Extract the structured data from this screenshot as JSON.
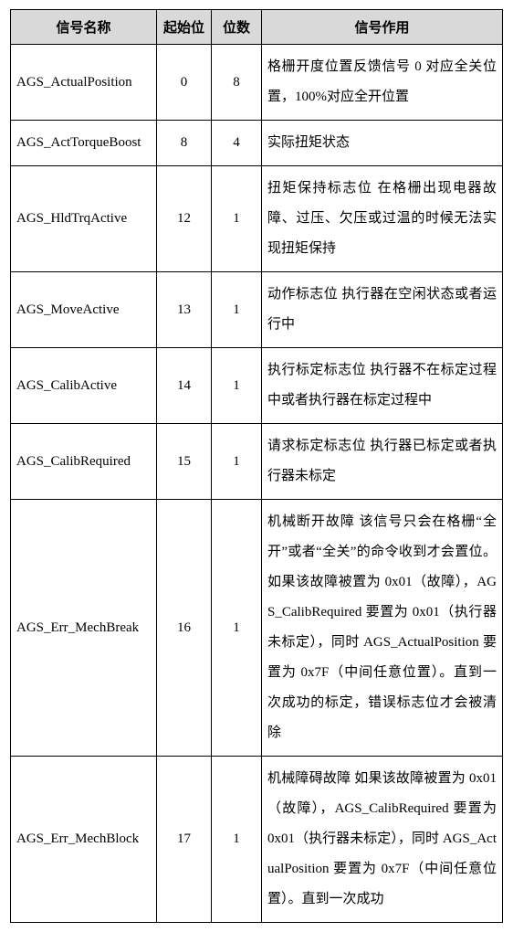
{
  "table": {
    "headers": [
      "信号名称",
      "起始位",
      "位数",
      "信号作用"
    ],
    "rows": [
      {
        "name": "AGS_ActualPosition",
        "start": "0",
        "bits": "8",
        "desc": "格栅开度位置反馈信号\n0 对应全关位置，100%对应全开位置"
      },
      {
        "name": "AGS_ActTorqueBoost",
        "start": "8",
        "bits": "4",
        "desc": "实际扭矩状态"
      },
      {
        "name": "AGS_HldTrqActive",
        "start": "12",
        "bits": "1",
        "desc": "扭矩保持标志位\n在格栅出现电器故障、过压、欠压或过温的时候无法实现扭矩保持"
      },
      {
        "name": "AGS_MoveActive",
        "start": "13",
        "bits": "1",
        "desc": "动作标志位\n执行器在空闲状态或者运行中"
      },
      {
        "name": "AGS_CalibActive",
        "start": "14",
        "bits": "1",
        "desc": "执行标定标志位\n执行器不在标定过程中或者执行器在标定过程中"
      },
      {
        "name": "AGS_CalibRequired",
        "start": "15",
        "bits": "1",
        "desc": "请求标定标志位\n执行器已标定或者执行器未标定"
      },
      {
        "name": "AGS_Err_MechBreak",
        "start": "16",
        "bits": "1",
        "desc": "机械断开故障\n该信号只会在格栅“全开”或者“全关”的命令收到才会置位。如果该故障被置为 0x01（故障），AGS_CalibRequired 要置为 0x01（执行器未标定），同时 AGS_ActualPosition 要置为 0x7F（中间任意位置）。直到一次成功的标定，错误标志位才会被清除"
      },
      {
        "name": "AGS_Err_MechBlock",
        "start": "17",
        "bits": "1",
        "desc": "机械障碍故障\n如果该故障被置为 0x01（故障），AGS_CalibRequired 要置为 0x01（执行器未标定），同时 AGS_ActualPosition 要置为 0x7F（中间任意位置）。直到一次成功"
      }
    ]
  }
}
